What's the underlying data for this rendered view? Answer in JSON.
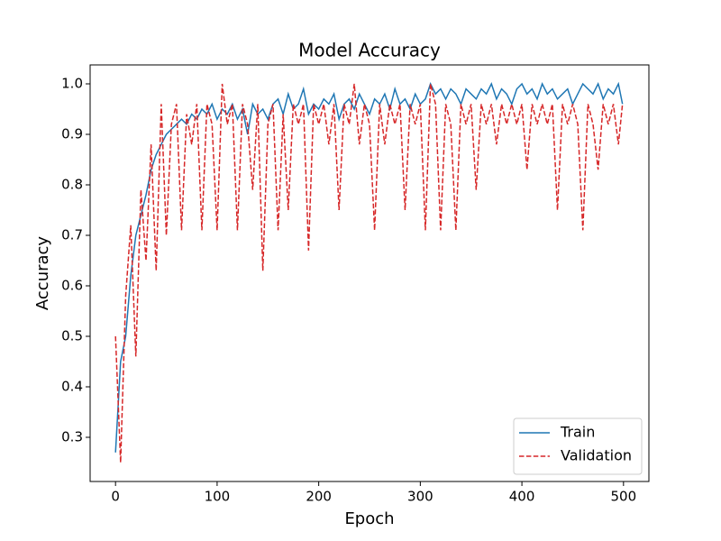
{
  "chart_data": {
    "type": "line",
    "title": "Model Accuracy",
    "xlabel": "Epoch",
    "ylabel": "Accuracy",
    "x": [
      0,
      5,
      10,
      15,
      20,
      25,
      30,
      35,
      40,
      45,
      50,
      55,
      60,
      65,
      70,
      75,
      80,
      85,
      90,
      95,
      100,
      105,
      110,
      115,
      120,
      125,
      130,
      135,
      140,
      145,
      150,
      155,
      160,
      165,
      170,
      175,
      180,
      185,
      190,
      195,
      200,
      205,
      210,
      215,
      220,
      225,
      230,
      235,
      240,
      245,
      250,
      255,
      260,
      265,
      270,
      275,
      280,
      285,
      290,
      295,
      300,
      305,
      310,
      315,
      320,
      325,
      330,
      335,
      340,
      345,
      350,
      355,
      360,
      365,
      370,
      375,
      380,
      385,
      390,
      395,
      400,
      405,
      410,
      415,
      420,
      425,
      430,
      435,
      440,
      445,
      450,
      455,
      460,
      465,
      470,
      475,
      480,
      485,
      490,
      495,
      499
    ],
    "series": [
      {
        "name": "Train",
        "color": "#1f77b4",
        "linestyle": "solid",
        "values": [
          0.27,
          0.45,
          0.5,
          0.62,
          0.7,
          0.74,
          0.78,
          0.83,
          0.86,
          0.88,
          0.9,
          0.91,
          0.92,
          0.93,
          0.92,
          0.94,
          0.93,
          0.95,
          0.94,
          0.96,
          0.93,
          0.95,
          0.94,
          0.96,
          0.93,
          0.95,
          0.9,
          0.96,
          0.94,
          0.95,
          0.93,
          0.96,
          0.97,
          0.94,
          0.98,
          0.95,
          0.96,
          0.99,
          0.94,
          0.96,
          0.95,
          0.97,
          0.96,
          0.98,
          0.93,
          0.96,
          0.97,
          0.95,
          0.98,
          0.96,
          0.94,
          0.97,
          0.96,
          0.98,
          0.95,
          0.99,
          0.96,
          0.97,
          0.95,
          0.98,
          0.96,
          0.97,
          1.0,
          0.98,
          0.99,
          0.97,
          0.99,
          0.98,
          0.96,
          0.99,
          0.98,
          0.97,
          0.99,
          0.98,
          1.0,
          0.97,
          0.99,
          0.98,
          0.96,
          0.99,
          1.0,
          0.98,
          0.99,
          0.97,
          1.0,
          0.98,
          0.99,
          0.97,
          0.98,
          0.99,
          0.96,
          0.98,
          1.0,
          0.99,
          0.98,
          1.0,
          0.97,
          0.99,
          0.98,
          1.0,
          0.96
        ]
      },
      {
        "name": "Validation",
        "color": "#d62728",
        "linestyle": "dashed",
        "values": [
          0.5,
          0.25,
          0.58,
          0.72,
          0.46,
          0.79,
          0.65,
          0.88,
          0.63,
          0.96,
          0.7,
          0.92,
          0.96,
          0.71,
          0.94,
          0.88,
          0.96,
          0.71,
          0.96,
          0.92,
          0.71,
          1.0,
          0.92,
          0.96,
          0.71,
          0.96,
          0.92,
          0.79,
          0.96,
          0.63,
          0.92,
          0.96,
          0.71,
          0.94,
          0.75,
          0.96,
          0.92,
          0.96,
          0.67,
          0.96,
          0.92,
          0.96,
          0.88,
          0.96,
          0.75,
          0.96,
          0.92,
          1.0,
          0.88,
          0.96,
          0.92,
          0.71,
          0.96,
          0.88,
          0.96,
          0.92,
          0.96,
          0.75,
          0.96,
          0.92,
          0.96,
          0.71,
          1.0,
          0.96,
          0.71,
          0.96,
          0.92,
          0.71,
          0.96,
          0.92,
          0.96,
          0.79,
          0.96,
          0.92,
          0.96,
          0.88,
          0.96,
          0.92,
          0.96,
          0.92,
          0.96,
          0.83,
          0.96,
          0.92,
          0.96,
          0.92,
          0.96,
          0.75,
          0.96,
          0.92,
          0.96,
          0.92,
          0.71,
          0.96,
          0.92,
          0.83,
          0.96,
          0.92,
          0.96,
          0.88,
          0.96
        ]
      }
    ],
    "xlim": [
      -25,
      525
    ],
    "xticks": [
      0,
      100,
      200,
      300,
      400,
      500
    ],
    "ylim": [
      0.2125,
      1.0375
    ],
    "yticks": [
      0.3,
      0.4,
      0.5,
      0.6,
      0.7,
      0.8,
      0.9,
      {
        "value": 1,
        "label": "1.0"
      }
    ],
    "legend": "lower right"
  }
}
